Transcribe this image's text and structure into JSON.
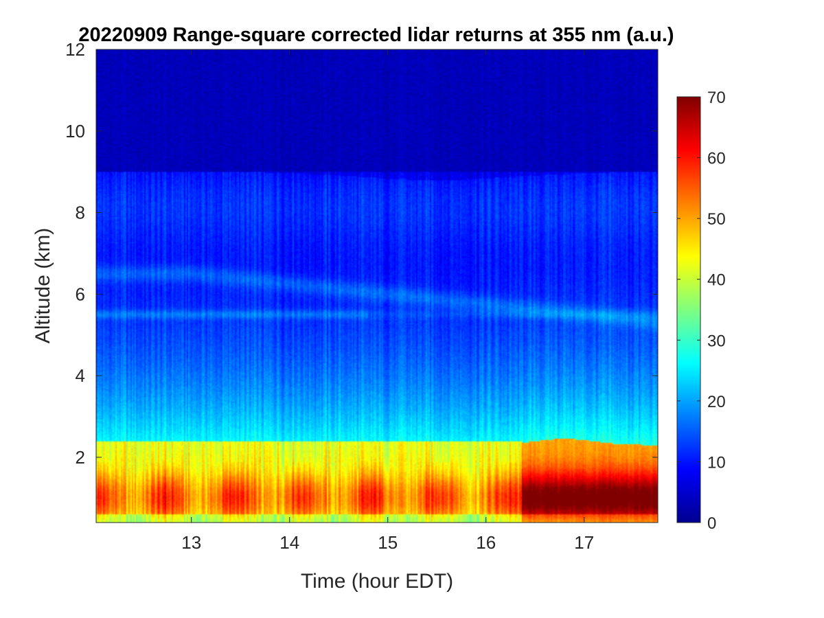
{
  "chart_data": {
    "type": "heatmap",
    "title": "20220909  Range-square corrected lidar returns at 355 nm (a.u.)",
    "xlabel": "Time (hour EDT)",
    "ylabel": "Altitude (km)",
    "xlim": [
      12.03,
      17.75
    ],
    "ylim": [
      0.4,
      12
    ],
    "x_ticks": [
      13,
      14,
      15,
      16,
      17
    ],
    "y_ticks": [
      2,
      4,
      6,
      8,
      10,
      12
    ],
    "colorbar": {
      "min": 0,
      "max": 70,
      "ticks": [
        0,
        10,
        20,
        30,
        40,
        50,
        60,
        70
      ],
      "colormap": "jet"
    },
    "grid": false,
    "features": {
      "boundary_layer_top_km": 2.4,
      "instrument_change_time_hour": 16.37,
      "aerosol_layers_km": [
        5.5,
        6.5,
        8.7
      ],
      "max_signal_region": {
        "time_range": [
          16.37,
          17.75
        ],
        "altitude_km": [
          0.4,
          1.8
        ],
        "value_approx": 65
      },
      "boundary_layer_value_approx": 50,
      "free_troposphere_value_approx": 18,
      "upper_troposphere_value_approx": 5
    }
  }
}
